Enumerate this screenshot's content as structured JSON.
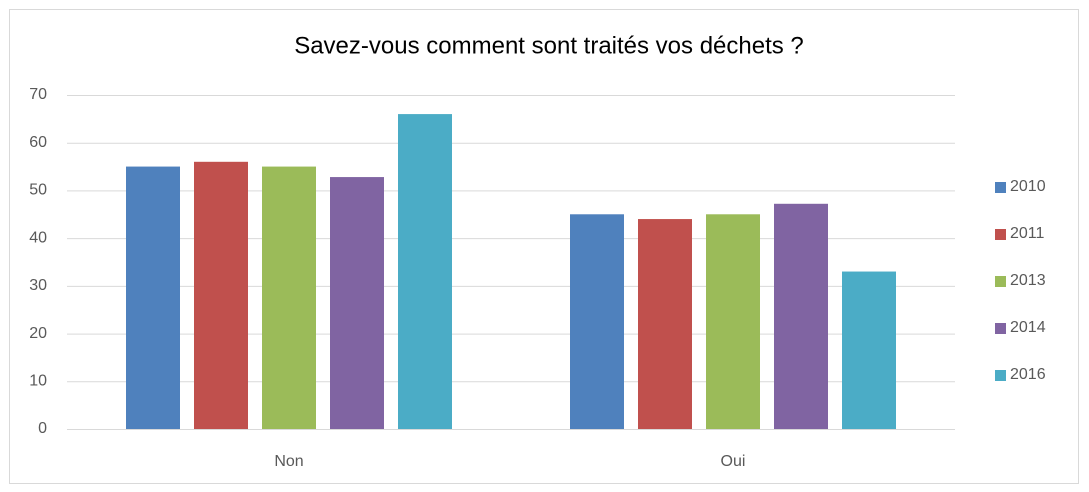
{
  "chart_data": {
    "type": "bar",
    "title": "Savez-vous comment sont traités vos déchets ?",
    "categories": [
      "Non",
      "Oui"
    ],
    "series": [
      {
        "name": "2010",
        "color": "#4f81bd",
        "values": [
          55,
          45
        ]
      },
      {
        "name": "2011",
        "color": "#c0504d",
        "values": [
          56,
          44
        ]
      },
      {
        "name": "2013",
        "color": "#9bbb59",
        "values": [
          55,
          45
        ]
      },
      {
        "name": "2014",
        "color": "#8064a2",
        "values": [
          52.8,
          47.2
        ]
      },
      {
        "name": "2016",
        "color": "#4bacc6",
        "values": [
          66,
          33
        ]
      }
    ],
    "ylim": [
      0,
      70
    ],
    "yticks": [
      0,
      10,
      20,
      30,
      40,
      50,
      60,
      70
    ],
    "grid": true,
    "legend": "right"
  }
}
